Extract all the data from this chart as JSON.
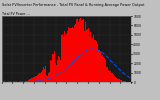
{
  "title": "Solar PV/Inverter Performance - Total PV Panel & Running Average Power Output",
  "legend_label": "Total PV Power ---",
  "background_color": "#c0c0c0",
  "plot_bg_color": "#1a1a1a",
  "grid_color": "#555555",
  "bar_color": "#ff0000",
  "line_color": "#0055ff",
  "n_points": 144,
  "bar_peak_index": 85,
  "ylim": [
    0,
    7000
  ],
  "y_ticks": [
    0,
    1000,
    2000,
    3000,
    4000,
    5000,
    6000,
    7000
  ],
  "line_plateau": 3500
}
